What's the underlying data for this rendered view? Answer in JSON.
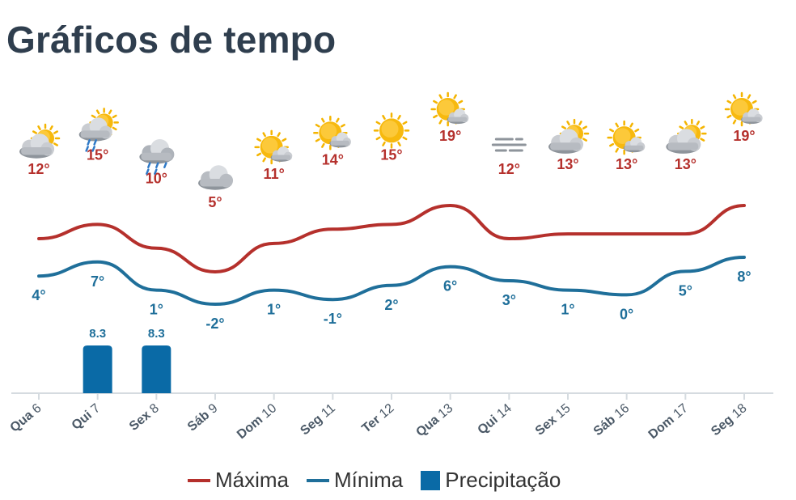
{
  "title": "Gráficos de tempo",
  "colors": {
    "max": "#b5302c",
    "min": "#1f6f9a",
    "precip": "#0a6aa6",
    "axis": "#d5dbe0"
  },
  "chart_data": {
    "type": "line",
    "days": [
      {
        "dow": "Qua",
        "day": "6",
        "icon": "partly-cloudy-icon",
        "max": 12,
        "min": 4,
        "precip": null
      },
      {
        "dow": "Qui",
        "day": "7",
        "icon": "rain-sun-icon",
        "max": 15,
        "min": 7,
        "precip": 8.3
      },
      {
        "dow": "Sex",
        "day": "8",
        "icon": "rain-cloud-icon",
        "max": 10,
        "min": 1,
        "precip": 8.3
      },
      {
        "dow": "Sáb",
        "day": "9",
        "icon": "cloud-icon",
        "max": 5,
        "min": -2,
        "precip": null
      },
      {
        "dow": "Dom",
        "day": "10",
        "icon": "mostly-sunny-icon",
        "max": 11,
        "min": 1,
        "precip": null
      },
      {
        "dow": "Seg",
        "day": "11",
        "icon": "mostly-sunny-icon",
        "max": 14,
        "min": -1,
        "precip": null
      },
      {
        "dow": "Ter",
        "day": "12",
        "icon": "sun-icon",
        "max": 15,
        "min": 2,
        "precip": null
      },
      {
        "dow": "Qua",
        "day": "13",
        "icon": "mostly-sunny-icon",
        "max": 19,
        "min": 6,
        "precip": null
      },
      {
        "dow": "Qui",
        "day": "14",
        "icon": "fog-icon",
        "max": 12,
        "min": 3,
        "precip": null
      },
      {
        "dow": "Sex",
        "day": "15",
        "icon": "partly-cloudy-icon",
        "max": 13,
        "min": 1,
        "precip": null
      },
      {
        "dow": "Sáb",
        "day": "16",
        "icon": "mostly-sunny-icon",
        "max": 13,
        "min": 0,
        "precip": null
      },
      {
        "dow": "Dom",
        "day": "17",
        "icon": "partly-cloudy-icon",
        "max": 13,
        "min": 5,
        "precip": null
      },
      {
        "dow": "Seg",
        "day": "18",
        "icon": "mostly-sunny-icon",
        "max": 19,
        "min": 8,
        "precip": null
      }
    ],
    "temp_unit": "°",
    "precip_ylim": [
      0,
      10
    ]
  },
  "legend": {
    "max": "Máxima",
    "min": "Mínima",
    "precip": "Precipitação"
  }
}
